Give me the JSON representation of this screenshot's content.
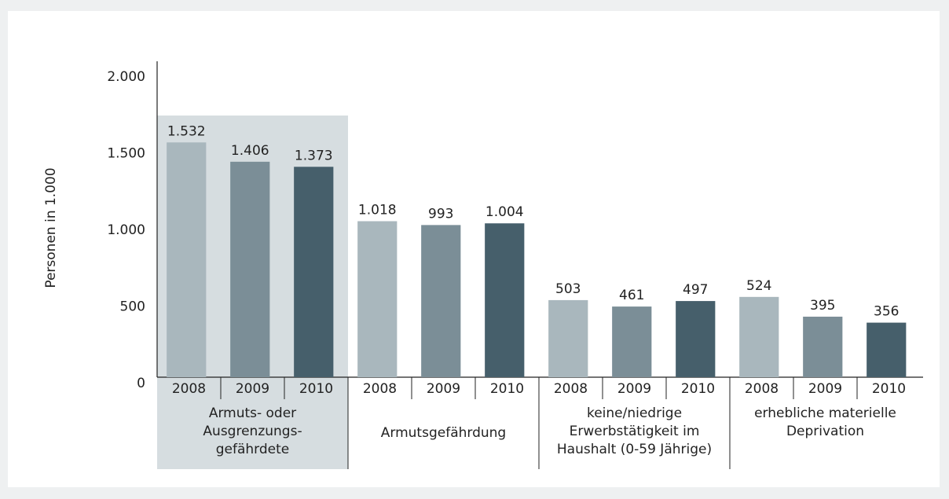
{
  "chart_data": {
    "type": "bar",
    "y_axis_label": "Personen in 1.000",
    "categories": [
      "Armuts- oder\nAusgrenzungs-\ngefährdete",
      "Armutsgefährdung",
      "keine/niedrige\nErwerbstätigkeit im\nHaushalt (0-59 Jährige)",
      "erhebliche materielle\nDeprivation"
    ],
    "series": [
      {
        "name": "2008",
        "color": "#a9b7bd",
        "values": [
          1532,
          1018,
          503,
          524
        ],
        "value_labels": [
          "1.532",
          "1.018",
          "503",
          "524"
        ]
      },
      {
        "name": "2009",
        "color": "#7b8e97",
        "values": [
          1406,
          993,
          461,
          395
        ],
        "value_labels": [
          "1.406",
          "993",
          "461",
          "395"
        ]
      },
      {
        "name": "2010",
        "color": "#465f6b",
        "values": [
          1373,
          1004,
          497,
          356
        ],
        "value_labels": [
          "1.373",
          "1.004",
          "497",
          "356"
        ]
      }
    ],
    "ylim": [
      0,
      2000
    ],
    "yticks": [
      0,
      500,
      {
        "value": 1000,
        "label": "1.000"
      },
      {
        "value": 1500,
        "label": "1.500"
      },
      {
        "value": 2000,
        "label": "2.000"
      }
    ],
    "highlight_index": 0,
    "highlight_color": "#d6dde0"
  }
}
